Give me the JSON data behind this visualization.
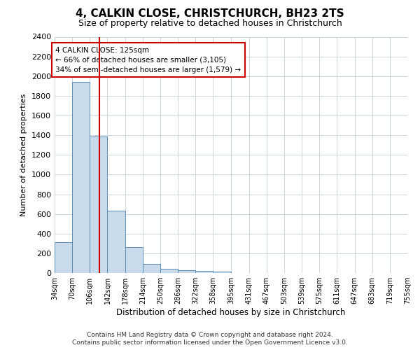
{
  "title": "4, CALKIN CLOSE, CHRISTCHURCH, BH23 2TS",
  "subtitle": "Size of property relative to detached houses in Christchurch",
  "xlabel": "Distribution of detached houses by size in Christchurch",
  "ylabel": "Number of detached properties",
  "footer_line1": "Contains HM Land Registry data © Crown copyright and database right 2024.",
  "footer_line2": "Contains public sector information licensed under the Open Government Licence v3.0.",
  "annotation_line1": "4 CALKIN CLOSE: 125sqm",
  "annotation_line2": "← 66% of detached houses are smaller (3,105)",
  "annotation_line3": "34% of semi-detached houses are larger (1,579) →",
  "bar_color": "#c9daea",
  "bar_edge_color": "#5b8db8",
  "redline_color": "#cc0000",
  "annotation_box_edge": "#cc0000",
  "bin_edges": [
    34,
    70,
    106,
    142,
    178,
    214,
    250,
    286,
    322,
    358,
    395,
    431,
    467,
    503,
    539,
    575,
    611,
    647,
    683,
    719,
    755
  ],
  "bin_counts": [
    310,
    1940,
    1390,
    630,
    260,
    90,
    45,
    30,
    20,
    15,
    0,
    0,
    0,
    0,
    0,
    0,
    0,
    0,
    0,
    0
  ],
  "property_size": 125,
  "ylim": [
    0,
    2400
  ],
  "yticks": [
    0,
    200,
    400,
    600,
    800,
    1000,
    1200,
    1400,
    1600,
    1800,
    2000,
    2200,
    2400
  ],
  "background_color": "#ffffff",
  "grid_color": "#ccd6e0"
}
